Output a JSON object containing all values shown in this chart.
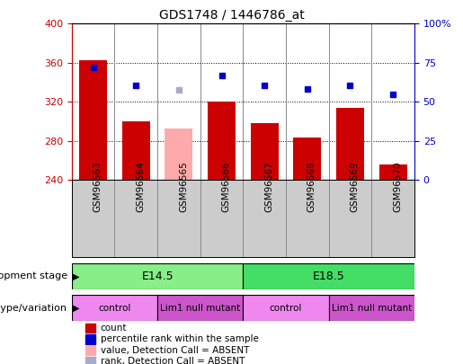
{
  "title": "GDS1748 / 1446786_at",
  "samples": [
    "GSM96563",
    "GSM96564",
    "GSM96565",
    "GSM96566",
    "GSM96567",
    "GSM96568",
    "GSM96569",
    "GSM96570"
  ],
  "bar_values": [
    363,
    300,
    293,
    320,
    298,
    284,
    314,
    256
  ],
  "bar_colors": [
    "#cc0000",
    "#cc0000",
    "#ffaaaa",
    "#cc0000",
    "#cc0000",
    "#cc0000",
    "#cc0000",
    "#cc0000"
  ],
  "dot_values": [
    355,
    337,
    332,
    347,
    337,
    333,
    337,
    328
  ],
  "dot_colors": [
    "#0000cc",
    "#0000cc",
    "#aaaacc",
    "#0000cc",
    "#0000cc",
    "#0000cc",
    "#0000cc",
    "#0000cc"
  ],
  "ymin": 240,
  "ymax": 400,
  "yticks": [
    240,
    280,
    320,
    360,
    400
  ],
  "right_ytick_labels": [
    "0",
    "25",
    "50",
    "75",
    "100%"
  ],
  "tick_label_color_left": "#cc0000",
  "tick_label_color_right": "#0000cc",
  "dev_stages": [
    {
      "label": "E14.5",
      "start": 0,
      "end": 4,
      "color": "#88ee88"
    },
    {
      "label": "E18.5",
      "start": 4,
      "end": 8,
      "color": "#44dd66"
    }
  ],
  "geno_groups": [
    {
      "label": "control",
      "start": 0,
      "end": 2,
      "color": "#ee88ee"
    },
    {
      "label": "Lim1 null mutant",
      "start": 2,
      "end": 4,
      "color": "#cc55cc"
    },
    {
      "label": "control",
      "start": 4,
      "end": 6,
      "color": "#ee88ee"
    },
    {
      "label": "Lim1 null mutant",
      "start": 6,
      "end": 8,
      "color": "#cc55cc"
    }
  ],
  "legend_items": [
    {
      "label": "count",
      "color": "#cc0000"
    },
    {
      "label": "percentile rank within the sample",
      "color": "#0000cc"
    },
    {
      "label": "value, Detection Call = ABSENT",
      "color": "#ffaaaa"
    },
    {
      "label": "rank, Detection Call = ABSENT",
      "color": "#aaaacc"
    }
  ],
  "background_color": "#ffffff"
}
